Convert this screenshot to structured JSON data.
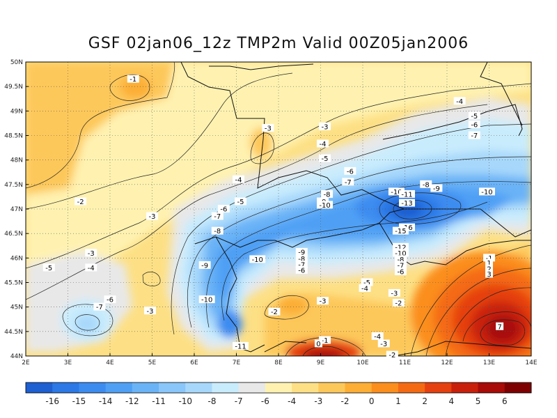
{
  "title": "GSF 02jan06_12z TMP2m Valid 00Z05jan2006",
  "map": {
    "lat_labels": [
      "50N",
      "49.5N",
      "49N",
      "48.5N",
      "48N",
      "47.5N",
      "47N",
      "46.5N",
      "46N",
      "45.5N",
      "45N",
      "44.5N",
      "44N"
    ],
    "lon_labels": [
      "2E",
      "3E",
      "4E",
      "5E",
      "6E",
      "7E",
      "8E",
      "9E",
      "10E",
      "11E",
      "12E",
      "13E",
      "14E"
    ],
    "lat_range": [
      44,
      50
    ],
    "lon_range": [
      2,
      14
    ],
    "grid": "dotted",
    "contour_labels": [
      {
        "text": "-1",
        "lon": 4.55,
        "lat": 49.65
      },
      {
        "text": "-2",
        "lon": 3.3,
        "lat": 47.15
      },
      {
        "text": "-3",
        "lon": 5.0,
        "lat": 46.85
      },
      {
        "text": "-3",
        "lon": 3.55,
        "lat": 46.1
      },
      {
        "text": "-4",
        "lon": 3.55,
        "lat": 45.8
      },
      {
        "text": "-5",
        "lon": 2.55,
        "lat": 45.8
      },
      {
        "text": "-6",
        "lon": 4.0,
        "lat": 45.15
      },
      {
        "text": "-7",
        "lon": 3.75,
        "lat": 45.0
      },
      {
        "text": "-3",
        "lon": 4.95,
        "lat": 44.92
      },
      {
        "text": "-3",
        "lon": 7.75,
        "lat": 48.65
      },
      {
        "text": "-4",
        "lon": 7.05,
        "lat": 47.6
      },
      {
        "text": "-5",
        "lon": 7.1,
        "lat": 47.15
      },
      {
        "text": "-6",
        "lon": 6.7,
        "lat": 47.0
      },
      {
        "text": "-7",
        "lon": 6.55,
        "lat": 46.85
      },
      {
        "text": "-8",
        "lon": 6.55,
        "lat": 46.55
      },
      {
        "text": "-9",
        "lon": 6.25,
        "lat": 45.85
      },
      {
        "text": "-10",
        "lon": 6.3,
        "lat": 45.15
      },
      {
        "text": "-10",
        "lon": 7.5,
        "lat": 45.97
      },
      {
        "text": "-11",
        "lon": 7.1,
        "lat": 44.2
      },
      {
        "text": "-2",
        "lon": 7.9,
        "lat": 44.9
      },
      {
        "text": "-3",
        "lon": 9.1,
        "lat": 48.68
      },
      {
        "text": "-4",
        "lon": 9.05,
        "lat": 48.33
      },
      {
        "text": "-5",
        "lon": 9.1,
        "lat": 48.03
      },
      {
        "text": "-6",
        "lon": 9.7,
        "lat": 47.77
      },
      {
        "text": "-7",
        "lon": 9.65,
        "lat": 47.55
      },
      {
        "text": "-8",
        "lon": 9.15,
        "lat": 47.3
      },
      {
        "text": "-9",
        "lon": 9.05,
        "lat": 47.15
      },
      {
        "text": "-10",
        "lon": 9.1,
        "lat": 47.08
      },
      {
        "text": "-9",
        "lon": 8.55,
        "lat": 46.12
      },
      {
        "text": "-8",
        "lon": 8.55,
        "lat": 45.98
      },
      {
        "text": "-7",
        "lon": 8.55,
        "lat": 45.86
      },
      {
        "text": "-6",
        "lon": 8.55,
        "lat": 45.75
      },
      {
        "text": "-10",
        "lon": 10.8,
        "lat": 47.35
      },
      {
        "text": "-11",
        "lon": 11.05,
        "lat": 47.3
      },
      {
        "text": "-13",
        "lon": 11.05,
        "lat": 47.12
      },
      {
        "text": "-16",
        "lon": 11.05,
        "lat": 46.62
      },
      {
        "text": "-15",
        "lon": 10.9,
        "lat": 46.55
      },
      {
        "text": "-12",
        "lon": 10.9,
        "lat": 46.22
      },
      {
        "text": "-10",
        "lon": 10.9,
        "lat": 46.1
      },
      {
        "text": "-8",
        "lon": 10.9,
        "lat": 45.97
      },
      {
        "text": "-7",
        "lon": 10.9,
        "lat": 45.85
      },
      {
        "text": "-6",
        "lon": 10.9,
        "lat": 45.72
      },
      {
        "text": "-5",
        "lon": 10.1,
        "lat": 45.5
      },
      {
        "text": "-4",
        "lon": 10.05,
        "lat": 45.38
      },
      {
        "text": "-3",
        "lon": 10.75,
        "lat": 45.28
      },
      {
        "text": "-2",
        "lon": 10.85,
        "lat": 45.08
      },
      {
        "text": "-3",
        "lon": 9.05,
        "lat": 45.12
      },
      {
        "text": "-4",
        "lon": 10.35,
        "lat": 44.4
      },
      {
        "text": "-3",
        "lon": 10.5,
        "lat": 44.25
      },
      {
        "text": "-1",
        "lon": 9.1,
        "lat": 44.32
      },
      {
        "text": "0",
        "lon": 8.95,
        "lat": 44.25
      },
      {
        "text": "-2",
        "lon": 10.7,
        "lat": 44.02
      },
      {
        "text": "-8",
        "lon": 11.5,
        "lat": 47.5
      },
      {
        "text": "-9",
        "lon": 11.75,
        "lat": 47.42
      },
      {
        "text": "-10",
        "lon": 12.95,
        "lat": 47.35
      },
      {
        "text": "-4",
        "lon": 12.3,
        "lat": 49.2
      },
      {
        "text": "-5",
        "lon": 12.65,
        "lat": 48.9
      },
      {
        "text": "-6",
        "lon": 12.65,
        "lat": 48.72
      },
      {
        "text": "-7",
        "lon": 12.65,
        "lat": 48.5
      },
      {
        "text": "-1",
        "lon": 13.0,
        "lat": 46.0
      },
      {
        "text": "1",
        "lon": 13.0,
        "lat": 45.9
      },
      {
        "text": "2",
        "lon": 13.0,
        "lat": 45.78
      },
      {
        "text": "3",
        "lon": 13.0,
        "lat": 45.67
      },
      {
        "text": "7",
        "lon": 13.25,
        "lat": 44.6
      }
    ]
  },
  "colorbar": {
    "colors": [
      "#1e5fd1",
      "#2b78e6",
      "#3c8cf0",
      "#4fa0f5",
      "#6ab3f7",
      "#8ac6f9",
      "#a7d8fb",
      "#c9ecfd",
      "#e8e8e8",
      "#fff2b0",
      "#fde085",
      "#fdc85a",
      "#fcae35",
      "#fb8e1c",
      "#f46a13",
      "#e5400f",
      "#c9200c",
      "#a80b08",
      "#7e0000"
    ],
    "labels": [
      "-16",
      "-15",
      "-14",
      "-12",
      "-11",
      "-10",
      "-8",
      "-7",
      "-6",
      "-4",
      "-3",
      "-2",
      "0",
      "1",
      "2",
      "4",
      "5",
      "6"
    ]
  }
}
